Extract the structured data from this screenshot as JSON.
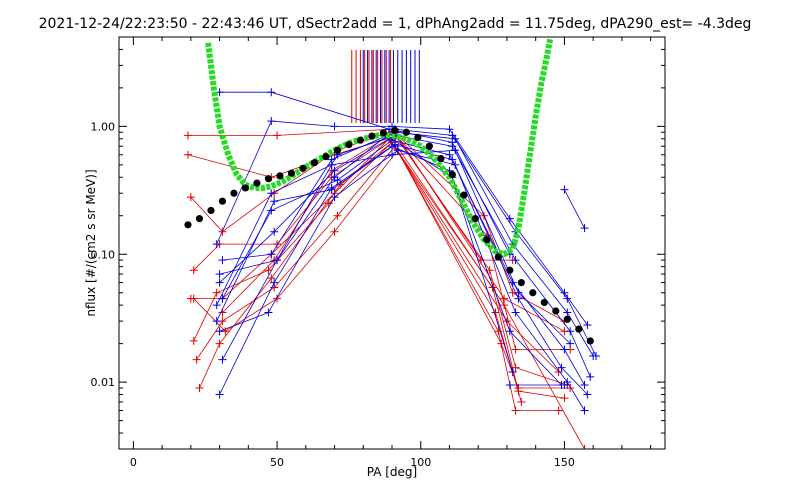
{
  "chart_data": {
    "type": "scatter",
    "title": "2021-12-24/22:23:50 - 22:43:46 UT, dSectr2add = 1, dPhAng2add = 11.75deg, dPA290_est=  -4.3deg",
    "xlabel": "PA [deg]",
    "ylabel": "nflux [#/(cm2 s sr MeV)]",
    "xlim": [
      -5,
      185
    ],
    "ylim": [
      0.003,
      5.0
    ],
    "yscale": "log",
    "x_ticks": [
      0,
      50,
      100,
      150
    ],
    "x_tick_labels": [
      "0",
      "50",
      "100",
      "150"
    ],
    "y_ticks": [
      0.01,
      0.1,
      1.0
    ],
    "y_tick_labels": [
      "0.01",
      "0.10",
      "1.00"
    ],
    "grid": false,
    "colors": {
      "red": "#e00000",
      "blue": "#0000e0",
      "fit": "#22dd22",
      "avg": "#000000"
    },
    "red_ticks_x": [
      76,
      77.5,
      79,
      80.5,
      82,
      83.5,
      85,
      86.5,
      88,
      89.5
    ],
    "blue_ticks_x": [
      80,
      81.5,
      83,
      84.5,
      86,
      87.5,
      89,
      90.5,
      92,
      93.5,
      95,
      96.5,
      98,
      99.5
    ],
    "series": [
      {
        "color": "red",
        "x": [
          19,
          50,
          90,
          121,
          132
        ],
        "y": [
          0.85,
          0.85,
          0.95,
          0.09,
          0.09
        ]
      },
      {
        "color": "red",
        "x": [
          19,
          48,
          70,
          92,
          122,
          132,
          150
        ],
        "y": [
          0.6,
          0.4,
          0.6,
          0.85,
          0.2,
          0.05,
          0.03
        ]
      },
      {
        "color": "red",
        "x": [
          20,
          31,
          49,
          71,
          90,
          123,
          133,
          152
        ],
        "y": [
          0.28,
          0.15,
          0.3,
          0.65,
          0.92,
          0.14,
          0.018,
          0.018
        ]
      },
      {
        "color": "red",
        "x": [
          21,
          30,
          50,
          69,
          91,
          124,
          133,
          151
        ],
        "y": [
          0.075,
          0.12,
          0.12,
          0.4,
          0.85,
          0.075,
          0.013,
          0.0095
        ]
      },
      {
        "color": "red",
        "x": [
          20,
          31,
          48,
          70,
          89,
          125,
          134,
          150
        ],
        "y": [
          0.045,
          0.045,
          0.1,
          0.3,
          0.8,
          0.055,
          0.0085,
          0.0075
        ]
      },
      {
        "color": "red",
        "x": [
          21,
          29,
          47,
          68,
          90,
          126,
          135
        ],
        "y": [
          0.021,
          0.05,
          0.075,
          0.25,
          0.75,
          0.035,
          0.007
        ]
      },
      {
        "color": "red",
        "x": [
          22,
          31,
          49,
          71,
          91,
          127,
          133,
          148
        ],
        "y": [
          0.015,
          0.03,
          0.055,
          0.2,
          0.7,
          0.025,
          0.006,
          0.006
        ]
      },
      {
        "color": "red",
        "x": [
          21,
          32,
          50,
          70,
          92,
          128,
          134,
          152
        ],
        "y": [
          0.045,
          0.025,
          0.045,
          0.15,
          0.65,
          0.02,
          0.009,
          0.009
        ]
      },
      {
        "color": "red",
        "x": [
          23,
          30,
          48,
          72,
          90,
          130,
          148
        ],
        "y": [
          0.009,
          0.02,
          0.065,
          0.35,
          0.75,
          0.03,
          0.012
        ]
      },
      {
        "color": "red",
        "x": [
          90,
          129,
          157
        ],
        "y": [
          0.8,
          0.04,
          0.003
        ]
      },
      {
        "color": "red",
        "x": [
          31,
          49,
          69,
          91,
          129,
          150
        ],
        "y": [
          0.035,
          0.09,
          0.45,
          0.9,
          0.045,
          0.025
        ]
      },
      {
        "color": "blue",
        "x": [
          30,
          48,
          89,
          111,
          131
        ],
        "y": [
          1.85,
          1.85,
          0.95,
          0.75,
          0.1
        ]
      },
      {
        "color": "blue",
        "x": [
          29,
          48,
          70,
          90,
          110,
          131,
          150,
          158
        ],
        "y": [
          0.12,
          1.1,
          1.0,
          1.0,
          0.95,
          0.19,
          0.05,
          0.028
        ]
      },
      {
        "color": "blue",
        "x": [
          31,
          48,
          69,
          91,
          112,
          132,
          151,
          160
        ],
        "y": [
          0.09,
          0.1,
          0.55,
          0.9,
          0.8,
          0.12,
          0.035,
          0.016
        ]
      },
      {
        "color": "blue",
        "x": [
          30,
          49,
          70,
          91,
          111,
          133,
          152,
          159
        ],
        "y": [
          0.06,
          0.15,
          0.45,
          0.85,
          0.7,
          0.09,
          0.025,
          0.011
        ]
      },
      {
        "color": "blue",
        "x": [
          31,
          48,
          71,
          90,
          110,
          132,
          150,
          157
        ],
        "y": [
          0.045,
          0.22,
          0.38,
          0.78,
          0.6,
          0.06,
          0.018,
          0.0095
        ]
      },
      {
        "color": "blue",
        "x": [
          29,
          49,
          69,
          91,
          111,
          134,
          149,
          158
        ],
        "y": [
          0.03,
          0.26,
          0.32,
          0.72,
          0.55,
          0.045,
          0.013,
          0.008
        ]
      },
      {
        "color": "blue",
        "x": [
          30,
          47,
          70,
          92,
          112,
          133,
          151,
          157
        ],
        "y": [
          0.025,
          0.035,
          0.28,
          0.65,
          0.5,
          0.035,
          0.01,
          0.006
        ]
      },
      {
        "color": "blue",
        "x": [
          30,
          49,
          69,
          90,
          110,
          131,
          149
        ],
        "y": [
          0.008,
          0.06,
          0.33,
          0.7,
          0.45,
          0.025,
          0.0095
        ]
      },
      {
        "color": "blue",
        "x": [
          31,
          50,
          71,
          89,
          111,
          132
        ],
        "y": [
          0.015,
          0.09,
          0.6,
          0.82,
          0.4,
          0.012
        ]
      },
      {
        "color": "blue",
        "x": [
          131,
          150
        ],
        "y": [
          0.0095,
          0.0095
        ]
      },
      {
        "color": "blue",
        "x": [
          150,
          157
        ],
        "y": [
          0.32,
          0.16
        ]
      },
      {
        "color": "blue",
        "x": [
          30,
          50,
          70,
          91,
          111,
          133,
          151,
          161
        ],
        "y": [
          0.07,
          0.09,
          0.4,
          0.95,
          0.85,
          0.15,
          0.045,
          0.016
        ]
      },
      {
        "color": "blue",
        "x": [
          29,
          48,
          69,
          90,
          112,
          134,
          152
        ],
        "y": [
          0.04,
          0.3,
          0.5,
          0.6,
          0.65,
          0.05,
          0.02
        ]
      }
    ],
    "average_x": [
      19,
      23,
      27,
      31,
      35,
      39,
      43,
      47,
      51,
      55,
      59,
      63,
      67,
      71,
      75,
      79,
      83,
      87,
      91,
      95,
      99,
      103,
      107,
      111,
      115,
      119,
      123,
      127,
      131,
      135,
      139,
      143,
      147,
      151,
      155,
      159
    ],
    "average_y": [
      0.17,
      0.19,
      0.22,
      0.26,
      0.3,
      0.33,
      0.36,
      0.39,
      0.41,
      0.43,
      0.47,
      0.52,
      0.58,
      0.65,
      0.72,
      0.78,
      0.84,
      0.89,
      0.93,
      0.9,
      0.82,
      0.7,
      0.56,
      0.42,
      0.29,
      0.19,
      0.13,
      0.095,
      0.075,
      0.06,
      0.05,
      0.042,
      0.036,
      0.031,
      0.026,
      0.021
    ],
    "fit_x": [
      26,
      28,
      30,
      33,
      36,
      39,
      42,
      45,
      48,
      52,
      56,
      60,
      65,
      70,
      75,
      80,
      85,
      90,
      95,
      100,
      105,
      110,
      114,
      118,
      122,
      126,
      129,
      132,
      134,
      136,
      138,
      140,
      142,
      144,
      145
    ],
    "fit_y": [
      4.5,
      2.0,
      1.0,
      0.6,
      0.42,
      0.35,
      0.33,
      0.33,
      0.34,
      0.37,
      0.42,
      0.48,
      0.56,
      0.65,
      0.74,
      0.8,
      0.85,
      0.85,
      0.8,
      0.7,
      0.55,
      0.4,
      0.27,
      0.18,
      0.13,
      0.105,
      0.1,
      0.11,
      0.16,
      0.3,
      0.6,
      1.2,
      2.2,
      3.6,
      4.8
    ]
  }
}
